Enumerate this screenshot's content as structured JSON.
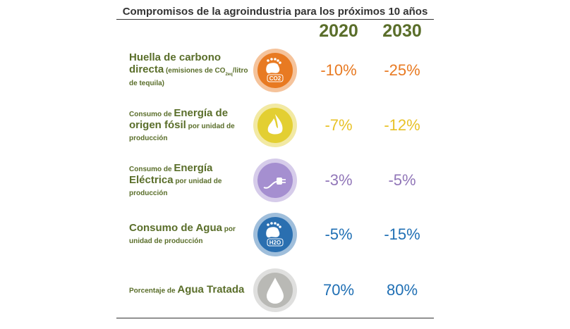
{
  "title": "Compromisos de la agroindustria para los próximos 10 años",
  "table": {
    "columns": [
      "2020",
      "2030"
    ],
    "rows": [
      {
        "label": [
          {
            "text": "Huella de carbono directa",
            "style": "big"
          },
          {
            "text": " (emisiones de CO",
            "style": "small"
          },
          {
            "text": "2eq",
            "style": "sub"
          },
          {
            "text": "/litro de tequila)",
            "style": "small"
          }
        ],
        "icon": "footprint",
        "icon_text": "CO2",
        "color": "#e87a22",
        "value_color": "#e87a22",
        "values": [
          "-10%",
          "-25%"
        ]
      },
      {
        "label": [
          {
            "text": "Consumo de ",
            "style": "small"
          },
          {
            "text": "Energía de origen fósil",
            "style": "big"
          },
          {
            "text": " por unidad de producción",
            "style": "small"
          }
        ],
        "icon": "flame",
        "color": "#e3cf32",
        "value_color": "#e8c228",
        "values": [
          "-7%",
          "-12%"
        ]
      },
      {
        "label": [
          {
            "text": "Consumo de ",
            "style": "small"
          },
          {
            "text": "Energía Eléctrica",
            "style": "big"
          },
          {
            "text": " por unidad de producción",
            "style": "small"
          }
        ],
        "icon": "plug",
        "color": "#a58fd0",
        "value_color": "#9176b8",
        "values": [
          "-3%",
          "-5%"
        ]
      },
      {
        "label": [
          {
            "text": "Consumo de Agua",
            "style": "big"
          },
          {
            "text": " por unidad de producción",
            "style": "small"
          }
        ],
        "icon": "footprint",
        "icon_text": "H2O",
        "color": "#2a6fb0",
        "value_color": "#1f6fb4",
        "values": [
          "-5%",
          "-15%"
        ]
      },
      {
        "label": [
          {
            "text": "Porcentaje de ",
            "style": "small"
          },
          {
            "text": "Agua Tratada",
            "style": "big"
          }
        ],
        "icon": "drop",
        "color": "#b9b9b5",
        "value_color": "#1f6fb4",
        "values": [
          "70%",
          "80%"
        ]
      }
    ]
  }
}
